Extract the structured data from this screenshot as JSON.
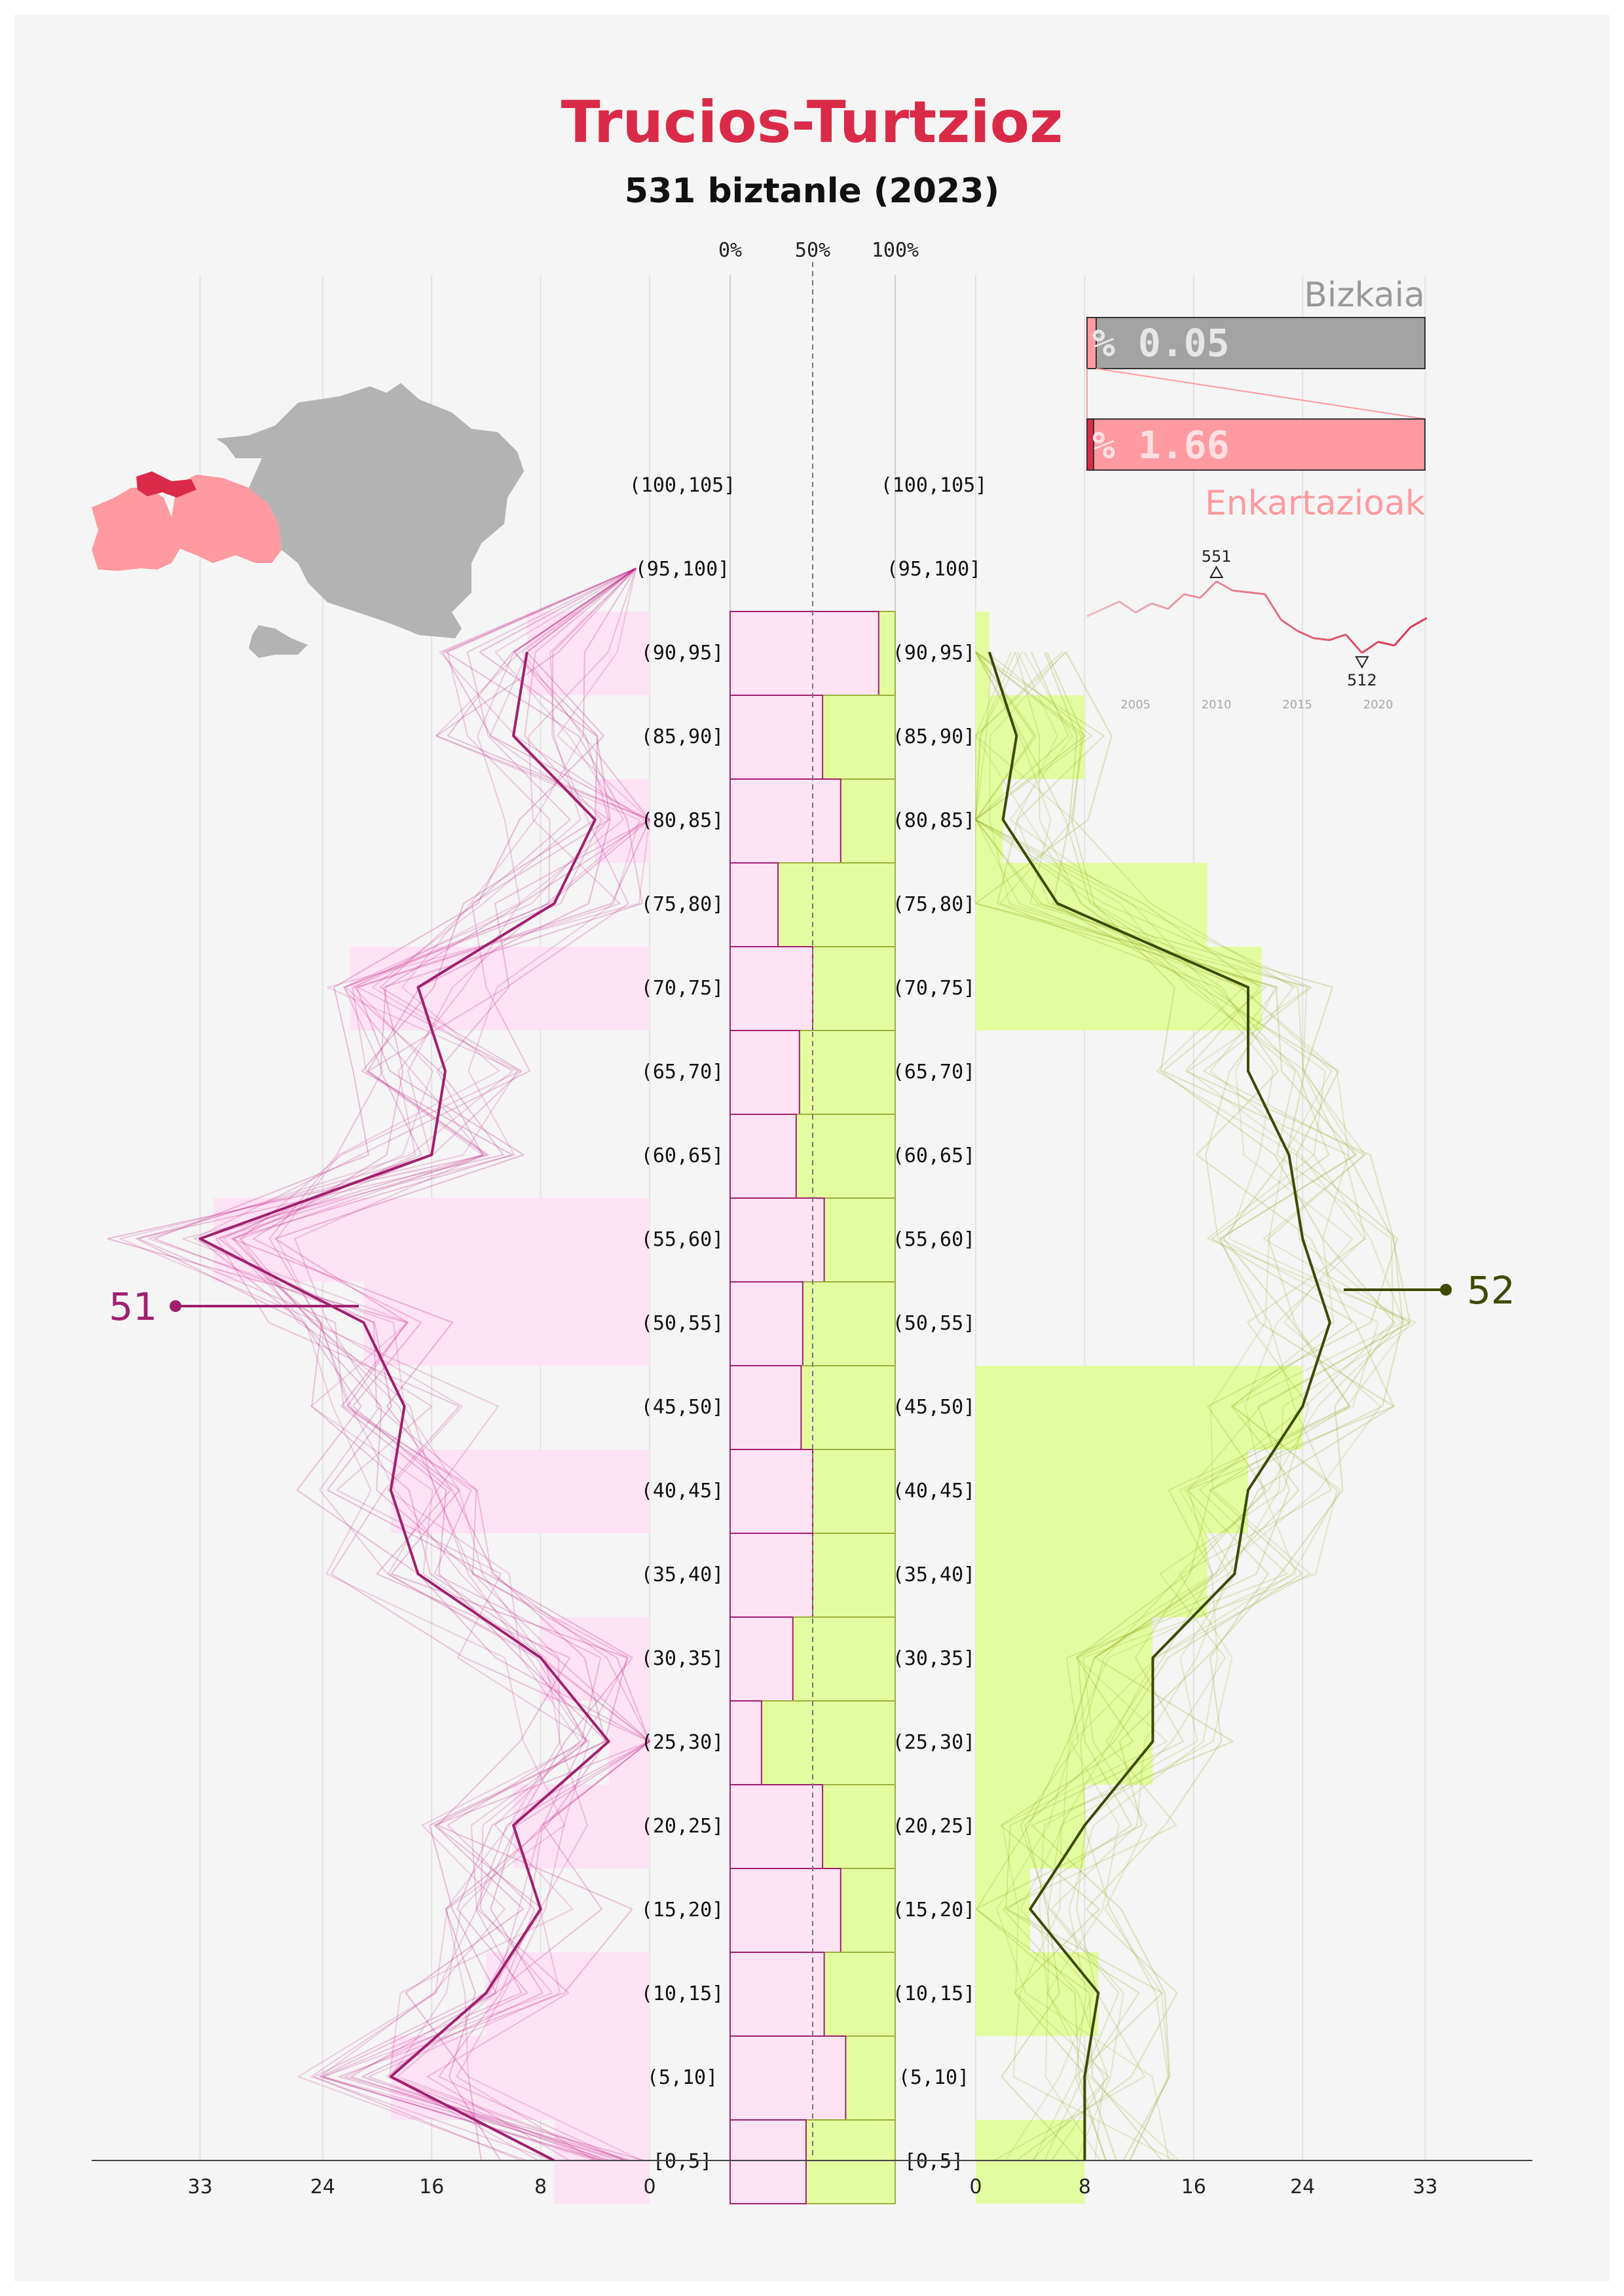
{
  "title": "Trucios-Turtzioz",
  "subtitle": "531 biztanle (2023)",
  "colors": {
    "female": "#c0177e",
    "female_fill": "#fde3f4",
    "male": "#3c4a05",
    "male_fill": "#e4fca0",
    "title": "#d92b47",
    "region_bar": "#999999",
    "subregion_bar": "#ff9aa0",
    "highlight": "#d92b47"
  },
  "share_panel": {
    "region_label": "Bizkaia",
    "region_value": "% 0.05",
    "subregion_label": "Enkartazioak",
    "subregion_value": "% 1.66"
  },
  "trend_inset": {
    "x_ticks": [
      "2005",
      "2010",
      "2015",
      "2020"
    ],
    "max_label": "551",
    "min_label": "512",
    "series": [
      [
        2002,
        532
      ],
      [
        2003,
        536
      ],
      [
        2004,
        540
      ],
      [
        2005,
        534
      ],
      [
        2006,
        539
      ],
      [
        2007,
        536
      ],
      [
        2008,
        544
      ],
      [
        2009,
        542
      ],
      [
        2010,
        551
      ],
      [
        2011,
        546
      ],
      [
        2012,
        545
      ],
      [
        2013,
        544
      ],
      [
        2014,
        530
      ],
      [
        2015,
        524
      ],
      [
        2016,
        520
      ],
      [
        2017,
        519
      ],
      [
        2018,
        522
      ],
      [
        2019,
        512
      ],
      [
        2020,
        518
      ],
      [
        2021,
        516
      ],
      [
        2022,
        526
      ],
      [
        2023,
        531
      ]
    ]
  },
  "chart_data": {
    "type": "population pyramid",
    "age_groups": [
      "(100,105]",
      "(95,100]",
      "(90,95]",
      "(85,90]",
      "(80,85]",
      "(75,80]",
      "(70,75]",
      "(65,70]",
      "(60,65]",
      "(55,60]",
      "(50,55]",
      "(45,50]",
      "(40,45]",
      "(35,40]",
      "(30,35]",
      "(25,30]",
      "(20,25]",
      "(15,20]",
      "(10,15]",
      "(5,10]",
      "[0,5]"
    ],
    "female_2023": [
      0,
      0,
      9,
      0,
      4,
      0,
      22,
      0,
      0,
      32,
      21,
      0,
      19,
      0,
      8,
      3,
      10,
      0,
      12,
      19,
      7
    ],
    "male_2023": [
      0,
      0,
      1,
      8,
      2,
      17,
      21,
      0,
      0,
      0,
      0,
      24,
      20,
      17,
      13,
      13,
      8,
      4,
      9,
      0,
      8
    ],
    "female_line": [
      null,
      null,
      9,
      10,
      4,
      7,
      17,
      15,
      16,
      33,
      21,
      18,
      19,
      17,
      8,
      3,
      10,
      8,
      12,
      19,
      7
    ],
    "male_line": [
      null,
      null,
      1,
      3,
      2,
      6,
      20,
      20,
      23,
      24,
      26,
      24,
      20,
      19,
      13,
      13,
      8,
      4,
      9,
      8,
      8
    ],
    "female_share_pct": [
      null,
      null,
      90,
      56,
      67,
      29,
      50,
      42,
      40,
      57,
      44,
      43,
      50,
      50,
      38,
      19,
      56,
      67,
      57,
      70,
      46
    ],
    "share_ticks": [
      "0%",
      "50%",
      "100%"
    ],
    "x_ticks_female": [
      "33",
      "24",
      "16",
      "8",
      "0"
    ],
    "x_ticks_male": [
      "0",
      "8",
      "16",
      "24",
      "33"
    ],
    "axis_max": 33,
    "female_total_label": "51",
    "male_total_label": "52"
  }
}
